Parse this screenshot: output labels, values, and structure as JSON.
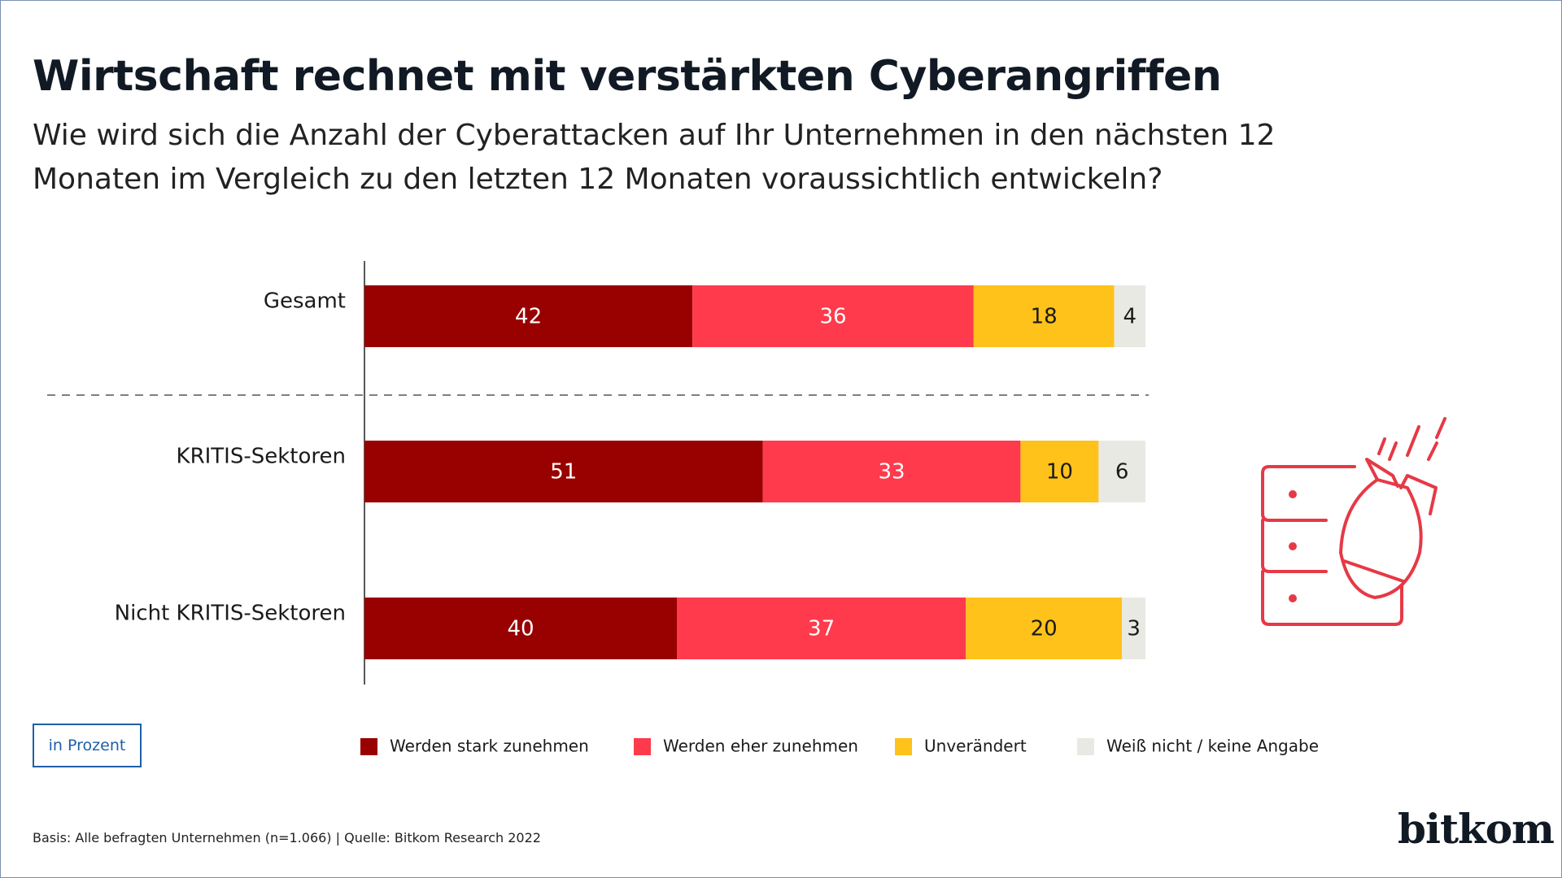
{
  "chart_data": {
    "type": "stacked-bar",
    "title": "Wirtschaft rechnet mit verstärkten Cyberangriffen",
    "subtitle": "Wie wird sich die Anzahl der Cyberattacken auf Ihr Unternehmen in den nächsten 12 Monaten im Vergleich zu den letzten 12 Monaten voraussichtlich entwickeln?",
    "categories": [
      "Gesamt",
      "KRITIS-Sektoren",
      "Nicht KRITIS-Sektoren"
    ],
    "series": [
      {
        "name": "Werden stark zunehmen",
        "color": "#990000",
        "label_color": "#ffffff",
        "values": [
          42,
          51,
          40
        ]
      },
      {
        "name": "Werden eher zunehmen",
        "color": "#ff3a4c",
        "label_color": "#ffffff",
        "values": [
          36,
          33,
          37
        ]
      },
      {
        "name": "Unverändert",
        "color": "#ffc21a",
        "label_color": "#1a1a1a",
        "values": [
          18,
          10,
          20
        ]
      },
      {
        "name": "Weiß nicht / keine Angabe",
        "color": "#e9e9e4",
        "label_color": "#1a1a1a",
        "values": [
          4,
          6,
          3
        ]
      }
    ],
    "unit_note": "in Prozent",
    "source": "Basis: Alle befragten Unternehmen (n=1.066) | Quelle: Bitkom Research 2022",
    "brand": "bitkom"
  }
}
